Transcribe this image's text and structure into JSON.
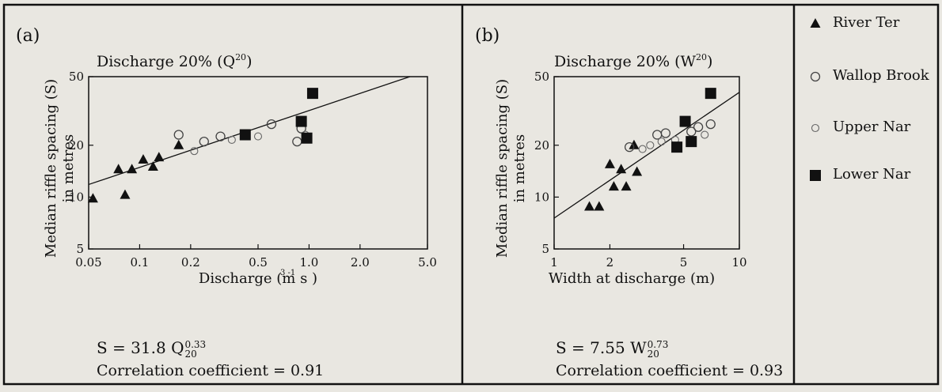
{
  "legend": [
    {
      "label": "River Ter",
      "marker": "triangle-filled"
    },
    {
      "label": "Wallop Brook",
      "marker": "circle-open"
    },
    {
      "label": "Upper Nar",
      "marker": "circle-open-small"
    },
    {
      "label": "Lower Nar",
      "marker": "square-filled"
    }
  ],
  "chart_data": [
    {
      "type": "scatter",
      "panel_label": "(a)",
      "title": "Discharge 20% (Q",
      "title_sup": "20",
      "title_close": ")",
      "xlabel": "Discharge (m   s  )",
      "ylabel_line1": "Median riffle spacing (S)",
      "ylabel_line2": "in metres",
      "xscale": "log",
      "yscale": "log",
      "xlim": [
        0.05,
        5.0
      ],
      "ylim": [
        5,
        50
      ],
      "xticks": [
        0.05,
        0.1,
        0.2,
        0.5,
        1.0,
        2.0,
        5.0
      ],
      "xtick_labels": [
        "0.05",
        "0.1",
        "0.2",
        "0.5",
        "1.0",
        "2.0",
        "5.0"
      ],
      "yticks": [
        5,
        10,
        20,
        50
      ],
      "ytick_labels": [
        "5",
        "10",
        "20",
        "50"
      ],
      "grid": false,
      "fit_line": {
        "a": 31.8,
        "b": 0.33
      },
      "series": [
        {
          "name": "River Ter",
          "marker": "triangle-filled",
          "points": [
            [
              0.053,
              9.8
            ],
            [
              0.075,
              14.5
            ],
            [
              0.082,
              10.3
            ],
            [
              0.09,
              14.5
            ],
            [
              0.105,
              16.5
            ],
            [
              0.12,
              15.0
            ],
            [
              0.13,
              17.0
            ],
            [
              0.17,
              20.0
            ]
          ]
        },
        {
          "name": "Wallop Brook",
          "marker": "circle-open",
          "points": [
            [
              0.17,
              23.0
            ],
            [
              0.24,
              21.0
            ],
            [
              0.3,
              22.5
            ],
            [
              0.6,
              26.5
            ],
            [
              0.85,
              21.0
            ],
            [
              0.9,
              25.0
            ]
          ]
        },
        {
          "name": "Upper Nar",
          "marker": "circle-open-small",
          "points": [
            [
              0.21,
              18.5
            ],
            [
              0.35,
              21.5
            ],
            [
              0.5,
              22.5
            ],
            [
              0.95,
              23.0
            ]
          ]
        },
        {
          "name": "Lower Nar",
          "marker": "square-filled",
          "points": [
            [
              0.42,
              23.0
            ],
            [
              0.9,
              27.5
            ],
            [
              0.97,
              22.0
            ],
            [
              1.05,
              40.0
            ]
          ]
        }
      ],
      "equation": {
        "lhs": "S = 31.8 Q",
        "exp": "0.33",
        "sub": "20"
      },
      "correlation": "Correlation coefficient = 0.91"
    },
    {
      "type": "scatter",
      "panel_label": "(b)",
      "title": "Discharge 20% (W",
      "title_sup": "20",
      "title_close": ")",
      "xlabel": "Width at discharge (m)",
      "ylabel_line1": "Median riffle spacing (S)",
      "ylabel_line2": "in metres",
      "xscale": "log",
      "yscale": "log",
      "xlim": [
        1,
        10
      ],
      "ylim": [
        5,
        50
      ],
      "xticks": [
        1,
        2,
        5,
        10
      ],
      "xtick_labels": [
        "1",
        "2",
        "5",
        "10"
      ],
      "yticks": [
        5,
        10,
        20,
        50
      ],
      "ytick_labels": [
        "5",
        "10",
        "20",
        "50"
      ],
      "grid": false,
      "fit_line": {
        "a": 7.55,
        "b": 0.73
      },
      "series": [
        {
          "name": "River Ter",
          "marker": "triangle-filled",
          "points": [
            [
              1.55,
              8.8
            ],
            [
              1.75,
              8.8
            ],
            [
              2.0,
              15.5
            ],
            [
              2.1,
              11.5
            ],
            [
              2.3,
              14.5
            ],
            [
              2.45,
              11.5
            ],
            [
              2.7,
              20.0
            ],
            [
              2.8,
              14.0
            ]
          ]
        },
        {
          "name": "Wallop Brook",
          "marker": "circle-open",
          "points": [
            [
              2.55,
              19.5
            ],
            [
              3.6,
              23.0
            ],
            [
              4.0,
              23.5
            ],
            [
              5.5,
              24.0
            ],
            [
              6.0,
              25.5
            ],
            [
              7.0,
              26.5
            ]
          ]
        },
        {
          "name": "Upper Nar",
          "marker": "circle-open-small",
          "points": [
            [
              3.0,
              19.0
            ],
            [
              3.3,
              20.0
            ],
            [
              3.8,
              21.0
            ],
            [
              4.5,
              21.5
            ],
            [
              6.5,
              23.0
            ]
          ]
        },
        {
          "name": "Lower Nar",
          "marker": "square-filled",
          "points": [
            [
              4.6,
              19.5
            ],
            [
              5.1,
              27.5
            ],
            [
              5.5,
              21.0
            ],
            [
              7.0,
              40.0
            ]
          ]
        }
      ],
      "equation": {
        "lhs": "S = 7.55 W",
        "exp": "0.73",
        "sub": "20"
      },
      "correlation": "Correlation coefficient = 0.93"
    }
  ]
}
